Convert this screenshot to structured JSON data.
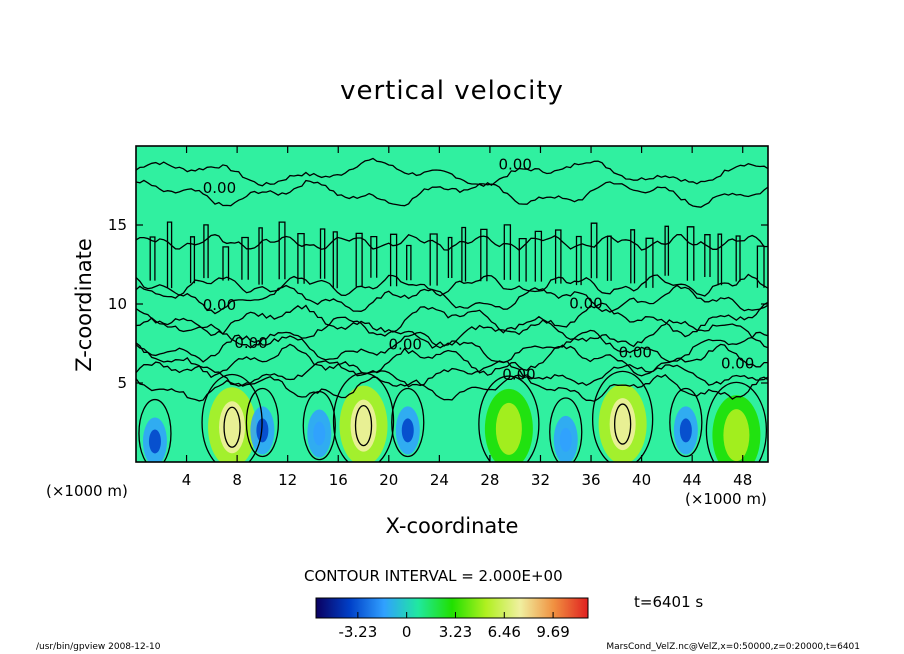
{
  "chart_data": {
    "type": "heatmap",
    "title": "vertical velocity",
    "xlabel": "X-coordinate",
    "ylabel": "Z-coordinate",
    "x_unit": "(×1000 m)",
    "xlim": [
      0,
      50
    ],
    "ylim": [
      0,
      20
    ],
    "x_ticks": [
      4,
      8,
      12,
      16,
      20,
      24,
      28,
      32,
      36,
      40,
      44,
      48
    ],
    "y_ticks": [
      5,
      10,
      15
    ],
    "contour_interval_text": "CONTOUR INTERVAL = 2.000E+00",
    "contour_labels": [
      {
        "text": "0.00",
        "x": 6.6,
        "z": 17.3
      },
      {
        "text": "0.00",
        "x": 30.0,
        "z": 18.8
      },
      {
        "text": "0.00",
        "x": 6.6,
        "z": 9.9
      },
      {
        "text": "0.00",
        "x": 35.6,
        "z": 10.0
      },
      {
        "text": "0.00",
        "x": 9.1,
        "z": 7.5
      },
      {
        "text": "0.00",
        "x": 21.3,
        "z": 7.4
      },
      {
        "text": "0.00",
        "x": 39.5,
        "z": 6.9
      },
      {
        "text": "0.00",
        "x": 30.3,
        "z": 5.5
      },
      {
        "text": "0.00",
        "x": 47.6,
        "z": 6.2
      }
    ],
    "colorbar": {
      "tick_labels": [
        "-3.23",
        "0",
        "3.23",
        "6.46",
        "9.69"
      ],
      "tick_values": [
        -3.23,
        0,
        3.23,
        6.46,
        9.69
      ],
      "range": [
        -6.0,
        12.0
      ],
      "colors": [
        "#0a0060",
        "#0040c8",
        "#30a0ff",
        "#20e8a0",
        "#20e000",
        "#b0f020",
        "#f0f0a0",
        "#f09040",
        "#e02020"
      ]
    },
    "updraft_cells": [
      {
        "x": 7.6,
        "z": 2.2,
        "w": 9.0
      },
      {
        "x": 18.0,
        "z": 2.3,
        "w": 10.5
      },
      {
        "x": 29.5,
        "z": 2.1,
        "w": 6.0
      },
      {
        "x": 38.5,
        "z": 2.4,
        "w": 9.5
      },
      {
        "x": 47.5,
        "z": 1.7,
        "w": 7.0
      }
    ],
    "downdraft_cells": [
      {
        "x": 1.5,
        "z": 1.3,
        "w": -3.5
      },
      {
        "x": 10.0,
        "z": 2.0,
        "w": -3.0
      },
      {
        "x": 14.5,
        "z": 1.8,
        "w": -2.5
      },
      {
        "x": 21.5,
        "z": 2.0,
        "w": -3.0
      },
      {
        "x": 34.0,
        "z": 1.4,
        "w": -2.0
      },
      {
        "x": 43.5,
        "z": 2.0,
        "w": -3.0
      }
    ]
  },
  "time_label": "t=6401 s",
  "footer": {
    "left": "/usr/bin/gpview  2008-12-10",
    "right": "MarsCond_VelZ.nc@VelZ,x=0:50000,z=0:20000,t=6401"
  }
}
